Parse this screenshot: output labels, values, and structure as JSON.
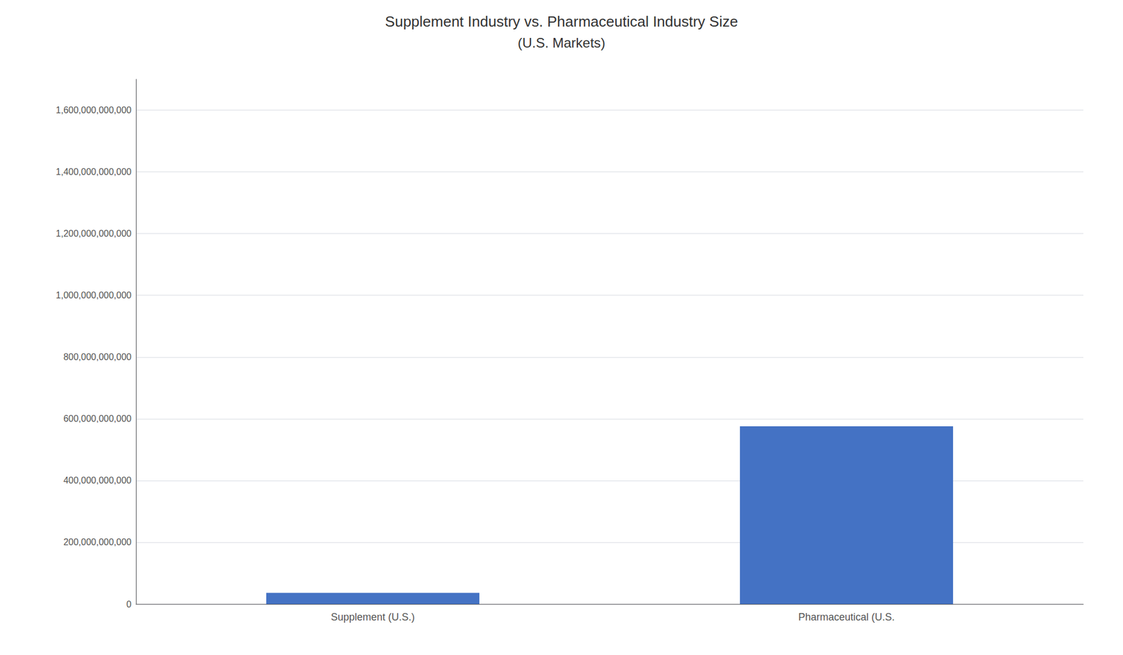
{
  "chart_data": {
    "type": "bar",
    "title": "Supplement Industry vs. Pharmaceutical Industry Size",
    "subtitle": "(U.S. Markets)",
    "categories": [
      "Supplement (U.S.)",
      "Pharmaceutical (U.S."
    ],
    "values": [
      36000000000,
      576000000000
    ],
    "color": "#4472C4",
    "ylim": [
      0,
      1700000000000
    ],
    "yticks": [
      0,
      {
        "value": 200000000000,
        "label": "200,000,000,000"
      },
      {
        "value": 400000000000,
        "label": "400,000,000,000"
      },
      {
        "value": 600000000000,
        "label": "600,000,000,000"
      },
      {
        "value": 800000000000,
        "label": "800,000,000,000"
      },
      {
        "value": 1000000000000,
        "label": "1,000,000,000,000"
      },
      {
        "value": 1200000000000,
        "label": "1,200,000,000,000"
      },
      {
        "value": 1400000000000,
        "label": "1,400,000,000,000"
      },
      {
        "value": 1600000000000,
        "label": "1,600,000,000,000"
      }
    ],
    "grid": true
  }
}
